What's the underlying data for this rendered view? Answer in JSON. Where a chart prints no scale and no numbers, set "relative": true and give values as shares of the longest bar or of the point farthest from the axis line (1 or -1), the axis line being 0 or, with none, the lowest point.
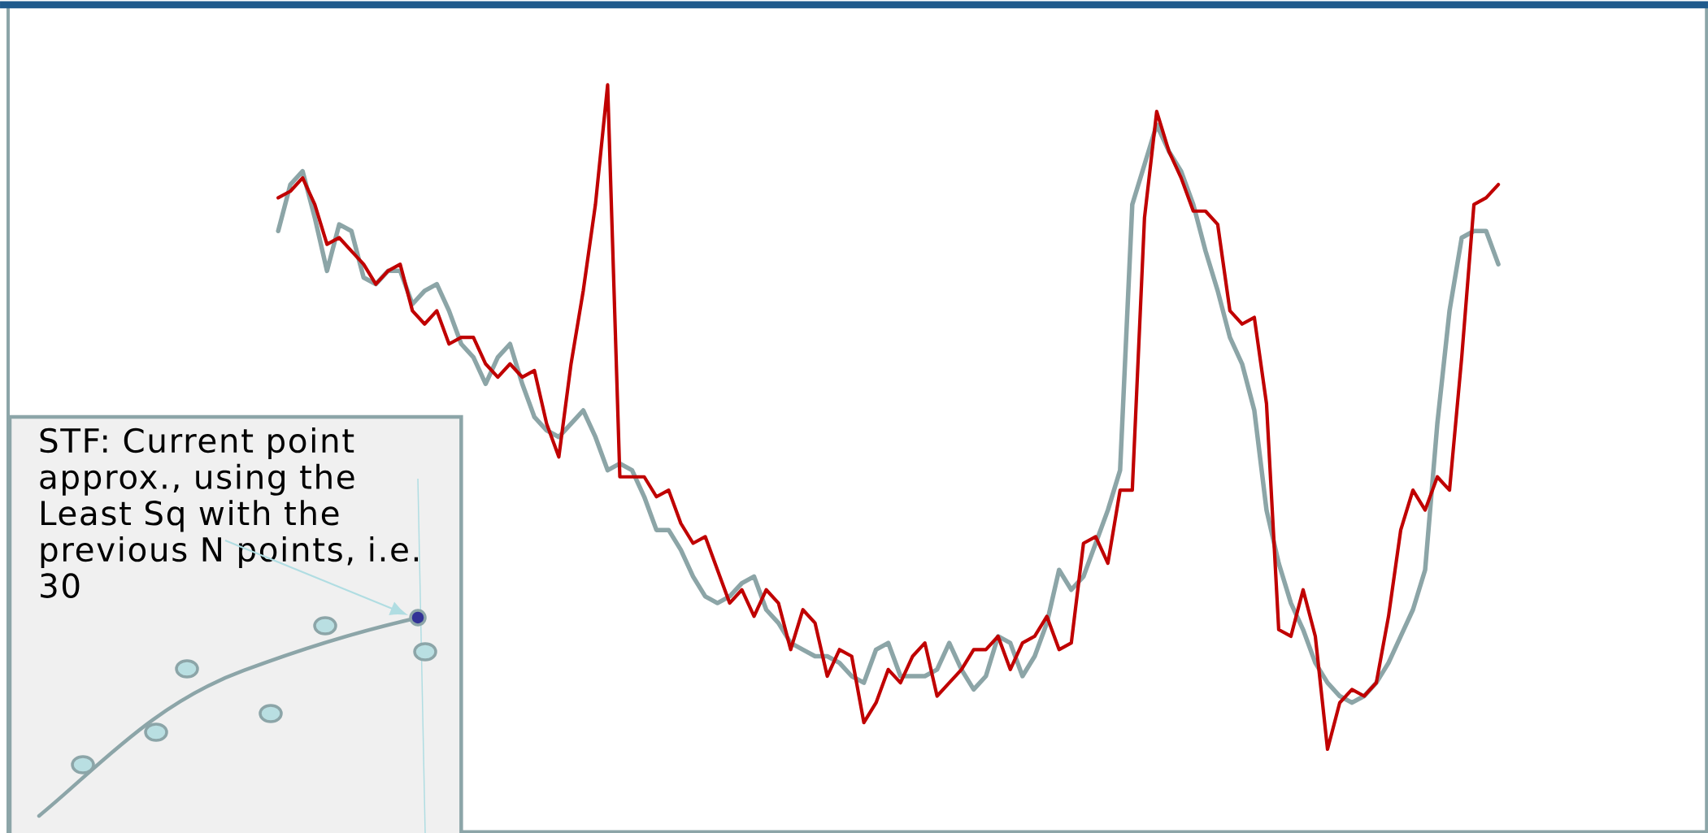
{
  "chart_data": {
    "type": "line",
    "relative": true,
    "line_style": "solid",
    "categories": [
      null,
      null,
      null,
      null,
      null,
      null,
      null,
      null,
      null,
      null,
      null,
      null,
      null,
      null,
      null,
      null,
      null,
      null,
      null,
      null,
      null,
      null,
      null,
      null,
      null,
      null,
      null,
      null,
      null,
      null,
      null,
      null,
      null,
      null,
      null,
      null,
      null,
      null,
      null,
      null,
      null,
      null,
      null,
      null,
      null,
      null,
      null,
      null,
      null,
      null,
      null,
      null,
      null,
      null,
      null,
      null,
      null,
      null,
      null,
      null,
      null,
      null,
      null,
      null,
      null,
      null,
      null,
      null,
      null,
      null,
      null,
      null,
      null,
      null,
      null,
      null,
      null,
      null,
      null,
      null,
      null,
      null,
      null,
      null,
      null,
      null,
      null,
      null,
      null,
      null,
      null,
      null,
      null,
      null,
      null,
      null,
      null,
      null,
      null,
      null,
      null
    ],
    "series": [
      {
        "color": "#8ca5a7",
        "values": [
          0.78,
          0.85,
          0.87,
          0.8,
          0.72,
          0.79,
          0.78,
          0.71,
          0.7,
          0.72,
          0.72,
          0.67,
          0.69,
          0.7,
          0.66,
          0.61,
          0.59,
          0.55,
          0.59,
          0.61,
          0.55,
          0.5,
          0.48,
          0.47,
          0.49,
          0.51,
          0.47,
          0.42,
          0.43,
          0.42,
          0.38,
          0.33,
          0.33,
          0.3,
          0.26,
          0.23,
          0.22,
          0.23,
          0.25,
          0.26,
          0.21,
          0.19,
          0.16,
          0.15,
          0.14,
          0.14,
          0.13,
          0.11,
          0.1,
          0.15,
          0.16,
          0.11,
          0.11,
          0.11,
          0.12,
          0.16,
          0.12,
          0.09,
          0.11,
          0.17,
          0.16,
          0.11,
          0.14,
          0.19,
          0.27,
          0.24,
          0.26,
          0.31,
          0.36,
          0.42,
          0.82,
          0.88,
          0.94,
          0.9,
          0.87,
          0.82,
          0.75,
          0.69,
          0.62,
          0.58,
          0.51,
          0.36,
          0.28,
          0.22,
          0.18,
          0.13,
          0.1,
          0.08,
          0.07,
          0.08,
          0.1,
          0.13,
          0.17,
          0.21,
          0.27,
          0.49,
          0.66,
          0.77,
          0.78,
          0.78,
          0.73
        ]
      },
      {
        "color": "#c00000",
        "values": [
          0.83,
          0.84,
          0.86,
          0.82,
          0.76,
          0.77,
          0.75,
          0.73,
          0.7,
          0.72,
          0.73,
          0.66,
          0.64,
          0.66,
          0.61,
          0.62,
          0.62,
          0.58,
          0.56,
          0.58,
          0.56,
          0.57,
          0.49,
          0.44,
          0.58,
          0.69,
          0.82,
          1.0,
          0.41,
          0.41,
          0.41,
          0.38,
          0.39,
          0.34,
          0.31,
          0.32,
          0.27,
          0.22,
          0.24,
          0.2,
          0.24,
          0.22,
          0.15,
          0.21,
          0.19,
          0.11,
          0.15,
          0.14,
          0.04,
          0.07,
          0.12,
          0.1,
          0.14,
          0.16,
          0.08,
          0.1,
          0.12,
          0.15,
          0.15,
          0.17,
          0.12,
          0.16,
          0.17,
          0.2,
          0.15,
          0.16,
          0.31,
          0.32,
          0.28,
          0.39,
          0.39,
          0.8,
          0.96,
          0.9,
          0.86,
          0.81,
          0.81,
          0.79,
          0.66,
          0.64,
          0.65,
          0.52,
          0.18,
          0.17,
          0.24,
          0.17,
          0.0,
          0.07,
          0.09,
          0.08,
          0.1,
          0.2,
          0.33,
          0.39,
          0.36,
          0.41,
          0.39,
          0.59,
          0.82,
          0.83,
          0.85
        ]
      }
    ],
    "annotations": [
      "STF: Current point approx., using the Least Sq with the previous N points, i.e. 30"
    ]
  }
}
